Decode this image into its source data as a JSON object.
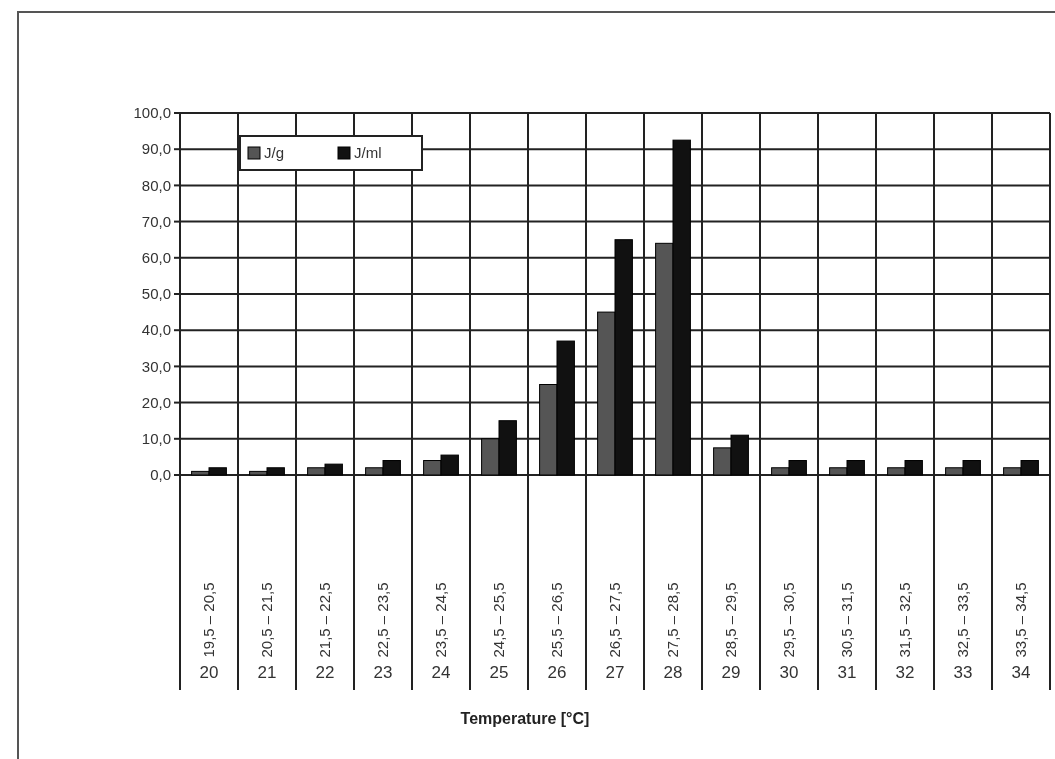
{
  "chart_data": {
    "type": "bar",
    "xlabel": "Temperature [°C]",
    "categories": [
      "19,5 – 20,5",
      "20,5 – 21,5",
      "21,5 – 22,5",
      "22,5 – 23,5",
      "23,5 – 24,5",
      "24,5 – 25,5",
      "25,5 – 26,5",
      "26,5 – 27,5",
      "27,5 – 28,5",
      "28,5 – 29,5",
      "29,5 – 30,5",
      "30,5 – 31,5",
      "31,5 – 32,5",
      "32,5 – 33,5",
      "33,5 – 34,5"
    ],
    "annotations": [
      "20",
      "21",
      "22",
      "23",
      "24",
      "25",
      "26",
      "27",
      "28",
      "29",
      "30",
      "31",
      "32",
      "33",
      "34"
    ],
    "series": [
      {
        "name": "J/g",
        "color": "#555555",
        "values": [
          1.0,
          1.0,
          2.0,
          2.0,
          4.0,
          10.0,
          25.0,
          45.0,
          64.0,
          7.5,
          2.0,
          2.0,
          2.0,
          2.0,
          2.0
        ]
      },
      {
        "name": "J/ml",
        "color": "#111111",
        "values": [
          2.0,
          2.0,
          3.0,
          4.0,
          5.5,
          15.0,
          37.0,
          65.0,
          92.5,
          11.0,
          4.0,
          4.0,
          4.0,
          4.0,
          4.0
        ]
      }
    ],
    "ylim": [
      0,
      100
    ],
    "yticks": [
      {
        "value": 0,
        "label": "0,0"
      },
      {
        "value": 10,
        "label": "10,0"
      },
      {
        "value": 20,
        "label": "20,0"
      },
      {
        "value": 30,
        "label": "30,0"
      },
      {
        "value": 40,
        "label": "40,0"
      },
      {
        "value": 50,
        "label": "50,0"
      },
      {
        "value": 60,
        "label": "60,0"
      },
      {
        "value": 70,
        "label": "70,0"
      },
      {
        "value": 80,
        "label": "80,0"
      },
      {
        "value": 90,
        "label": "90,0"
      },
      {
        "value": 100,
        "label": "100,0"
      }
    ],
    "grid": true,
    "legend": "top left"
  }
}
